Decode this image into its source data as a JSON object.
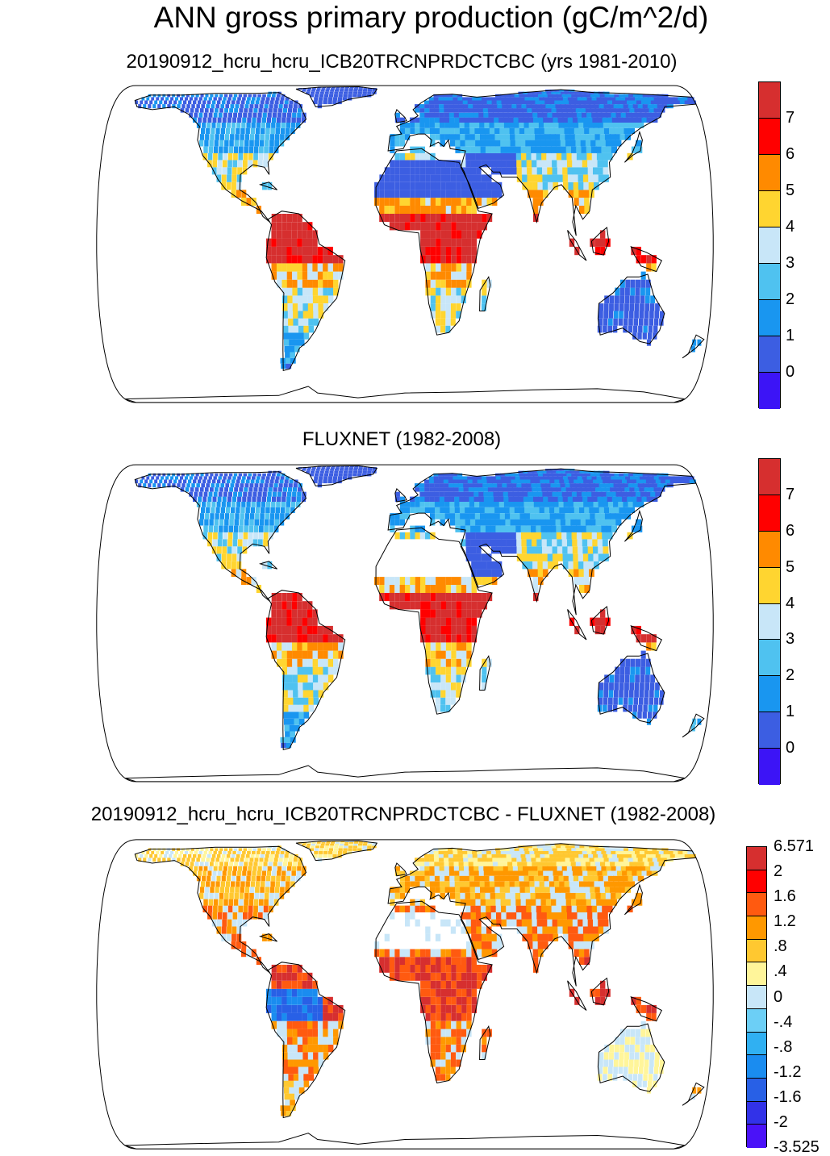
{
  "title": "ANN gross primary production (gC/m^2/d)",
  "panels": [
    {
      "name": "model",
      "title": "20190912_hcru_hcru_ICB20TRCNPRDCTCBC (yrs 1981-2010)",
      "colorbar": {
        "labels": [
          "7",
          "6",
          "5",
          "4",
          "3",
          "2",
          "1",
          "0"
        ],
        "colors": [
          "#d62f2f",
          "#ff0000",
          "#ff8a00",
          "#ffd530",
          "#c8e6f8",
          "#4fc2f0",
          "#1996f0",
          "#3c5ee2",
          "#3c14f6"
        ]
      }
    },
    {
      "name": "obs",
      "title": "FLUXNET (1982-2008)",
      "colorbar": {
        "labels": [
          "7",
          "6",
          "5",
          "4",
          "3",
          "2",
          "1",
          "0"
        ],
        "colors": [
          "#d62f2f",
          "#ff0000",
          "#ff8a00",
          "#ffd530",
          "#c8e6f8",
          "#4fc2f0",
          "#1996f0",
          "#3c5ee2",
          "#3c14f6"
        ]
      }
    },
    {
      "name": "diff",
      "title": "20190912_hcru_hcru_ICB20TRCNPRDCTCBC - FLUXNET (1982-2008)",
      "colorbar": {
        "labels": [
          "6.571",
          "2",
          "1.6",
          "1.2",
          ".8",
          ".4",
          "0",
          "-.4",
          "-.8",
          "-1.2",
          "-1.6",
          "-2",
          "-3.525"
        ],
        "colors": [
          "#d62f2f",
          "#ff0000",
          "#ff5a10",
          "#ff9800",
          "#ffc830",
          "#fff59a",
          "#c8e6f8",
          "#6ccff6",
          "#30b0f2",
          "#1a8cf0",
          "#2860e6",
          "#3232e8",
          "#4a12f8"
        ]
      }
    }
  ]
}
